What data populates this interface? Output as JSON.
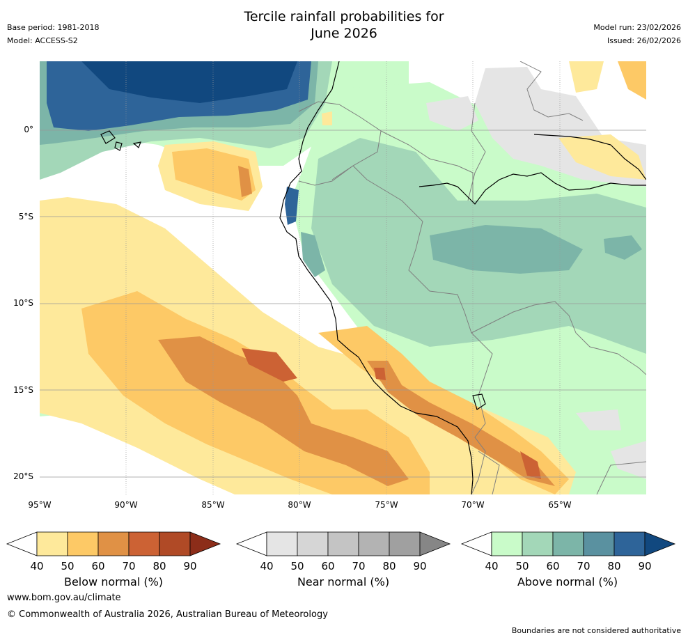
{
  "header": {
    "title_line1": "Tercile rainfall probabilities for",
    "title_line2": "June 2026",
    "base_period": "Base period: 1981-2018",
    "model": "Model: ACCESS-S2",
    "model_run": "Model run: 23/02/2026",
    "issued": "Issued: 26/02/2026"
  },
  "map": {
    "lat_labels": [
      "0°",
      "5°S",
      "10°S",
      "15°S",
      "20°S"
    ],
    "lon_labels": [
      "95°W",
      "90°W",
      "85°W",
      "80°W",
      "75°W",
      "70°W",
      "65°W"
    ],
    "region": "South America west coast and eastern Pacific",
    "colors": {
      "ocean_bg": "#ffffff",
      "gridline": "#999999",
      "coastline": "#000000",
      "border": "#7f7f7f"
    }
  },
  "colorbars": [
    {
      "title": "Below normal (%)",
      "ticks": [
        "40",
        "50",
        "60",
        "70",
        "80",
        "90"
      ],
      "colors": [
        "#ffffff",
        "#fee99b",
        "#fdc966",
        "#e09145",
        "#cc6234",
        "#b04a26",
        "#8c2d19"
      ]
    },
    {
      "title": "Near normal (%)",
      "ticks": [
        "40",
        "50",
        "60",
        "70",
        "80",
        "90"
      ],
      "colors": [
        "#ffffff",
        "#e5e5e5",
        "#d6d6d6",
        "#c4c4c4",
        "#b3b3b3",
        "#a0a0a0",
        "#868686"
      ]
    },
    {
      "title": "Above normal (%)",
      "ticks": [
        "40",
        "50",
        "60",
        "70",
        "80",
        "90"
      ],
      "colors": [
        "#ffffff",
        "#c9fbc9",
        "#a3d7b8",
        "#7cb5a8",
        "#5a91a0",
        "#2e6499",
        "#11487f"
      ]
    }
  ],
  "footer": {
    "url": "www.bom.gov.au/climate",
    "copyright": "© Commonwealth of Australia 2026, Australian Bureau of Meteorology",
    "disclaimer": "Boundaries are not considered authoritative"
  }
}
